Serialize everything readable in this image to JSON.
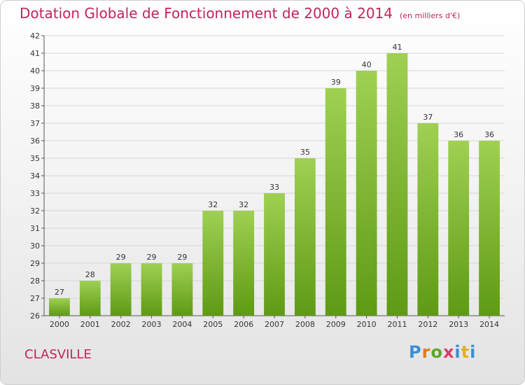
{
  "header": {
    "title": "Dotation Globale de Fonctionnement de 2000 à 2014",
    "subtitle": "(en milliers d'€)"
  },
  "commune": "CLASVILLE",
  "logo": "Proxiti",
  "colors": {
    "title": "#c0245c",
    "bar_top": "#9fd053",
    "bar_bottom": "#5e9a14",
    "grid": "#d6d6d6"
  },
  "chart_data": {
    "type": "bar",
    "title": "Dotation Globale de Fonctionnement de 2000 à 2014",
    "subtitle": "(en milliers d'€)",
    "categories": [
      "2000",
      "2001",
      "2002",
      "2003",
      "2004",
      "2005",
      "2006",
      "2007",
      "2008",
      "2009",
      "2010",
      "2011",
      "2012",
      "2013",
      "2014"
    ],
    "values": [
      27,
      28,
      29,
      29,
      29,
      32,
      32,
      33,
      35,
      39,
      40,
      41,
      37,
      36,
      36
    ],
    "ylim": [
      26,
      42
    ],
    "yticks": [
      26,
      27,
      28,
      29,
      30,
      31,
      32,
      33,
      34,
      35,
      36,
      37,
      38,
      39,
      40,
      41,
      42
    ],
    "grid": true,
    "xlabel": "",
    "ylabel": ""
  }
}
